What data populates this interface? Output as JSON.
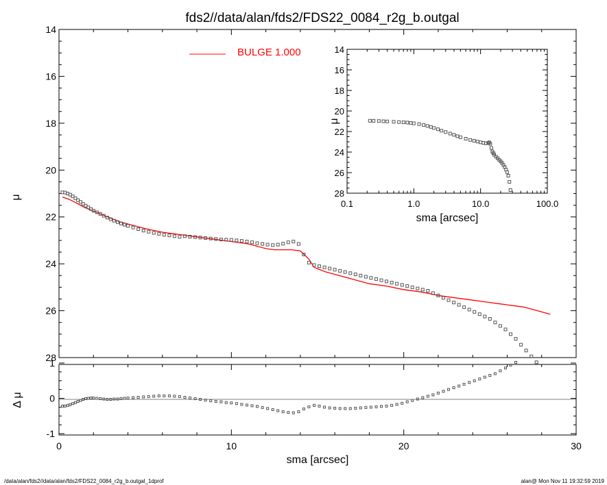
{
  "title": "fds2//data/alan/fds2/FDS22_0084_r2g_b.outgal",
  "footer_left": "/data/alan/fds2//data/alan/fds2/FDS22_0084_r2g_b.outgal_1dprof",
  "footer_right": "alan@  Mon Nov 11 19:32:59 2019",
  "colors": {
    "model": "#ff0000",
    "data_points": "#555555"
  },
  "chart_data": [
    {
      "id": "main",
      "type": "scatter",
      "title": "fds2//data/alan/fds2/FDS22_0084_r2g_b.outgal",
      "xlabel": "",
      "ylabel": "μ",
      "xlim": [
        0,
        30
      ],
      "ylim": [
        28,
        14
      ],
      "y_inverted": true,
      "xticks": [
        "0",
        "10",
        "20",
        "30"
      ],
      "yticks": [
        "14",
        "16",
        "18",
        "20",
        "22",
        "24",
        "26",
        "28"
      ],
      "legend": {
        "label": "BULGE  1.000",
        "position": "top-center"
      },
      "series": [
        {
          "name": "BULGE  1.000",
          "style": "line",
          "x": [
            0.2,
            0.6,
            1.0,
            1.5,
            2.0,
            2.5,
            3.0,
            3.5,
            4.0,
            5.0,
            6.0,
            7.0,
            8.0,
            9.0,
            10.0,
            11.0,
            11.5,
            12.0,
            12.5,
            13.0,
            13.5,
            14.0,
            14.5,
            14.8,
            15.5,
            16.0,
            17.0,
            18.0,
            19.0,
            20.0,
            21.0,
            22.0,
            23.0,
            24.0,
            24.5,
            25.0,
            25.5,
            26.0,
            26.5,
            27.0,
            27.5,
            28.0,
            28.5
          ],
          "y": [
            21.15,
            21.25,
            21.4,
            21.6,
            21.75,
            21.9,
            22.05,
            22.2,
            22.3,
            22.5,
            22.65,
            22.75,
            22.85,
            22.95,
            23.05,
            23.15,
            23.25,
            23.35,
            23.4,
            23.4,
            23.4,
            23.45,
            23.8,
            24.15,
            24.35,
            24.45,
            24.65,
            24.85,
            24.95,
            25.1,
            25.2,
            25.35,
            25.45,
            25.55,
            25.6,
            25.65,
            25.7,
            25.75,
            25.8,
            25.85,
            25.95,
            26.05,
            26.15
          ]
        },
        {
          "name": "",
          "style": "markers",
          "x": [
            0.2,
            0.35,
            0.5,
            0.65,
            0.8,
            0.95,
            1.1,
            1.25,
            1.4,
            1.55,
            1.7,
            1.85,
            2.0,
            2.2,
            2.4,
            2.6,
            2.8,
            3.0,
            3.2,
            3.4,
            3.6,
            3.8,
            4.0,
            4.3,
            4.6,
            4.9,
            5.2,
            5.5,
            5.8,
            6.1,
            6.4,
            6.7,
            7.0,
            7.3,
            7.6,
            7.9,
            8.2,
            8.5,
            8.8,
            9.1,
            9.4,
            9.7,
            10.0,
            10.3,
            10.6,
            10.9,
            11.2,
            11.5,
            11.8,
            12.1,
            12.4,
            12.7,
            13.0,
            13.3,
            13.6,
            13.9,
            14.2,
            14.5,
            14.8,
            15.1,
            15.4,
            15.7,
            16.0,
            16.3,
            16.6,
            16.9,
            17.2,
            17.5,
            17.8,
            18.1,
            18.4,
            18.7,
            19.0,
            19.3,
            19.6,
            19.9,
            20.2,
            20.5,
            20.8,
            21.1,
            21.4,
            21.7,
            22.0,
            22.3,
            22.6,
            22.9,
            23.2,
            23.5,
            23.8,
            24.1,
            24.4,
            24.7,
            25.0,
            25.3,
            25.6,
            25.9,
            26.2,
            26.5,
            26.8,
            27.1,
            27.4,
            27.7
          ],
          "y": [
            20.95,
            20.96,
            21.0,
            21.05,
            21.12,
            21.2,
            21.28,
            21.36,
            21.44,
            21.52,
            21.59,
            21.66,
            21.73,
            21.8,
            21.87,
            21.95,
            22.03,
            22.1,
            22.16,
            22.22,
            22.28,
            22.33,
            22.38,
            22.45,
            22.52,
            22.58,
            22.63,
            22.68,
            22.72,
            22.76,
            22.79,
            22.82,
            22.85,
            22.82,
            22.84,
            22.86,
            22.88,
            22.9,
            22.92,
            22.94,
            22.96,
            22.97,
            22.98,
            23.0,
            23.02,
            23.05,
            23.08,
            23.12,
            23.15,
            23.18,
            23.2,
            23.18,
            23.14,
            23.08,
            23.05,
            23.15,
            23.6,
            23.95,
            24.05,
            24.1,
            24.15,
            24.2,
            24.25,
            24.3,
            24.35,
            24.4,
            24.45,
            24.5,
            24.55,
            24.6,
            24.65,
            24.7,
            24.75,
            24.8,
            24.85,
            24.9,
            24.95,
            25.0,
            25.05,
            25.1,
            25.15,
            25.25,
            25.35,
            25.45,
            25.55,
            25.65,
            25.75,
            25.85,
            25.95,
            26.05,
            26.15,
            26.25,
            26.35,
            26.5,
            26.65,
            26.8,
            27.0,
            27.2,
            27.45,
            27.7,
            27.95,
            28.2
          ]
        }
      ]
    },
    {
      "id": "residual",
      "type": "scatter",
      "xlabel": "sma [arcsec]",
      "ylabel": "Δ μ",
      "xlim": [
        0,
        30
      ],
      "ylim": [
        -1,
        1
      ],
      "xticks": [
        "0",
        "10",
        "20",
        "30"
      ],
      "yticks": [
        "-1",
        "0",
        "1"
      ],
      "x": [
        0.2,
        0.35,
        0.5,
        0.65,
        0.8,
        0.95,
        1.1,
        1.25,
        1.4,
        1.55,
        1.7,
        1.85,
        2.0,
        2.2,
        2.4,
        2.6,
        2.8,
        3.0,
        3.2,
        3.4,
        3.6,
        3.8,
        4.0,
        4.3,
        4.6,
        4.9,
        5.2,
        5.5,
        5.8,
        6.1,
        6.4,
        6.7,
        7.0,
        7.3,
        7.6,
        7.9,
        8.2,
        8.5,
        8.8,
        9.1,
        9.4,
        9.7,
        10.0,
        10.3,
        10.6,
        10.9,
        11.2,
        11.5,
        11.8,
        12.1,
        12.4,
        12.7,
        13.0,
        13.3,
        13.6,
        13.9,
        14.2,
        14.5,
        14.8,
        15.1,
        15.4,
        15.7,
        16.0,
        16.3,
        16.6,
        16.9,
        17.2,
        17.5,
        17.8,
        18.1,
        18.4,
        18.7,
        19.0,
        19.3,
        19.6,
        19.9,
        20.2,
        20.5,
        20.8,
        21.1,
        21.4,
        21.7,
        22.0,
        22.3,
        22.6,
        22.9,
        23.2,
        23.5,
        23.8,
        24.1,
        24.4,
        24.7,
        25.0,
        25.3,
        25.6,
        25.9,
        26.2,
        26.5
      ],
      "y": [
        -0.22,
        -0.22,
        -0.2,
        -0.18,
        -0.15,
        -0.12,
        -0.09,
        -0.06,
        -0.03,
        -0.01,
        0.0,
        0.01,
        0.01,
        0.0,
        -0.01,
        -0.02,
        -0.03,
        -0.03,
        -0.02,
        -0.02,
        -0.01,
        0.0,
        0.01,
        0.02,
        0.03,
        0.04,
        0.05,
        0.06,
        0.07,
        0.07,
        0.07,
        0.06,
        0.05,
        0.03,
        0.01,
        -0.01,
        -0.03,
        -0.05,
        -0.07,
        -0.09,
        -0.1,
        -0.12,
        -0.13,
        -0.15,
        -0.17,
        -0.19,
        -0.21,
        -0.23,
        -0.26,
        -0.29,
        -0.32,
        -0.35,
        -0.38,
        -0.4,
        -0.41,
        -0.38,
        -0.3,
        -0.24,
        -0.2,
        -0.22,
        -0.25,
        -0.27,
        -0.28,
        -0.29,
        -0.29,
        -0.29,
        -0.28,
        -0.27,
        -0.26,
        -0.25,
        -0.24,
        -0.23,
        -0.22,
        -0.2,
        -0.17,
        -0.14,
        -0.1,
        -0.06,
        -0.02,
        0.02,
        0.06,
        0.1,
        0.15,
        0.2,
        0.25,
        0.3,
        0.35,
        0.4,
        0.45,
        0.5,
        0.55,
        0.6,
        0.65,
        0.7,
        0.78,
        0.86,
        0.94,
        1.02
      ]
    },
    {
      "id": "inset",
      "type": "scatter",
      "xlabel": "sma [arcsec]",
      "ylabel": "μ",
      "x_scale": "log",
      "xlim": [
        0.1,
        100
      ],
      "ylim": [
        28,
        14
      ],
      "y_inverted": true,
      "xticks": [
        "0.1",
        "1.0",
        "10.0",
        "100.0"
      ],
      "yticks": [
        "14",
        "16",
        "18",
        "20",
        "22",
        "24",
        "26",
        "28"
      ],
      "x": [
        0.22,
        0.25,
        0.3,
        0.35,
        0.4,
        0.5,
        0.6,
        0.7,
        0.8,
        0.9,
        1.0,
        1.2,
        1.4,
        1.6,
        1.8,
        2.0,
        2.3,
        2.6,
        3.0,
        3.5,
        4.0,
        4.5,
        5.0,
        6.0,
        7.0,
        8.0,
        9.0,
        10.0,
        11.0,
        12.0,
        13.0,
        13.5,
        14.0,
        14.5,
        15.0,
        15.5,
        16.0,
        17.0,
        18.0,
        19.0,
        20.0,
        21.0,
        22.0,
        23.0,
        24.0,
        25.0,
        26.0,
        27.0,
        28.0
      ],
      "y": [
        20.95,
        20.96,
        20.98,
        21.0,
        21.02,
        21.05,
        21.08,
        21.1,
        21.13,
        21.16,
        21.2,
        21.28,
        21.36,
        21.45,
        21.55,
        21.65,
        21.78,
        21.92,
        22.05,
        22.2,
        22.32,
        22.45,
        22.55,
        22.7,
        22.82,
        22.9,
        22.98,
        23.05,
        23.1,
        23.15,
        23.12,
        23.05,
        23.2,
        23.6,
        23.95,
        24.1,
        24.25,
        24.45,
        24.6,
        24.75,
        24.9,
        25.05,
        25.25,
        25.45,
        25.7,
        25.95,
        26.3,
        26.9,
        27.7
      ]
    }
  ]
}
